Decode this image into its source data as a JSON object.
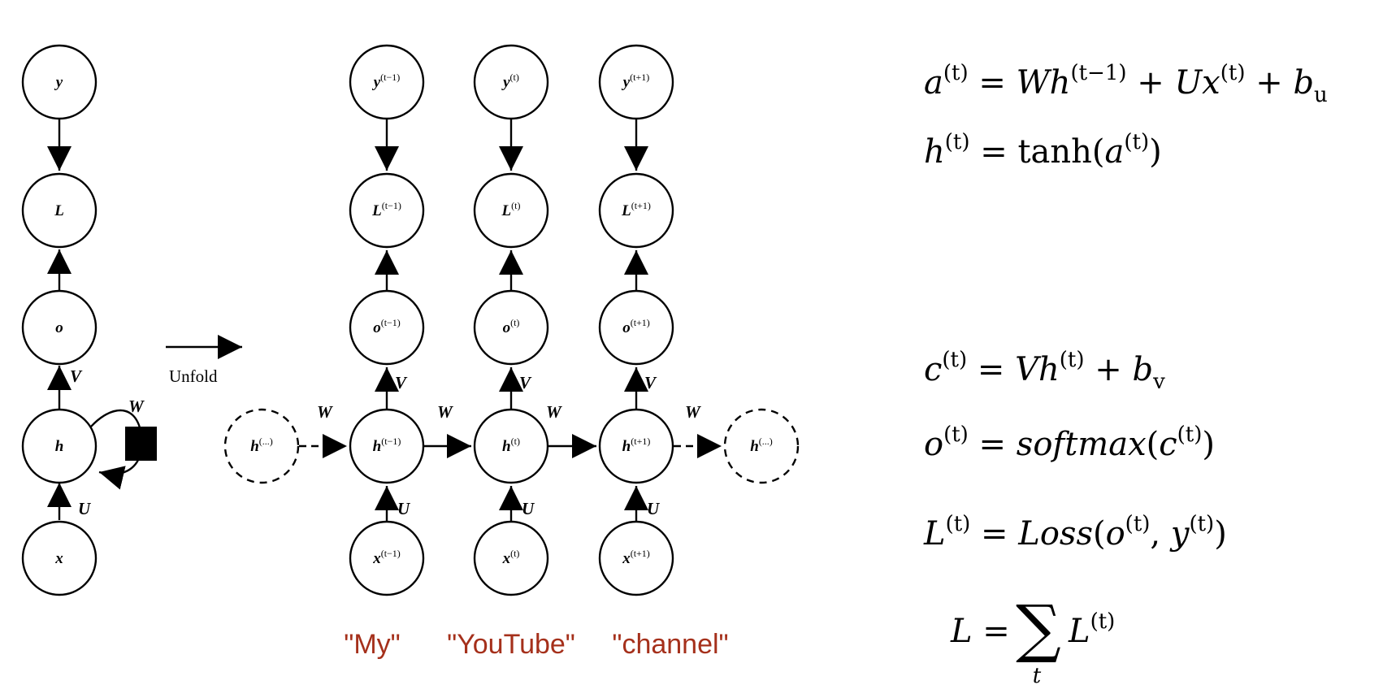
{
  "diagram": {
    "unfold_label": "Unfold",
    "folded": {
      "nodes": {
        "y": "y",
        "L": "L",
        "o": "o",
        "h": "h",
        "x": "x"
      },
      "weights": {
        "V": "V",
        "W": "W",
        "U": "U"
      }
    },
    "unfolded": {
      "h_prev_ellipsis": {
        "base": "h",
        "sup": "(...)"
      },
      "h_next_ellipsis": {
        "base": "h",
        "sup": "(...)"
      },
      "steps": [
        {
          "sup": "(t−1)",
          "word": "\"My\""
        },
        {
          "sup": "(t)",
          "word": "\"YouTube\""
        },
        {
          "sup": "(t+1)",
          "word": "\"channel\""
        }
      ],
      "weights": {
        "V": "V",
        "W": "W",
        "U": "U"
      }
    },
    "colors": {
      "word": "#a5301b",
      "stroke": "#000000"
    }
  },
  "equations": {
    "a_eq": "a(t) = Wh(t−1) + Ux(t) + bu",
    "h_eq": "h(t) = tanh(a(t))",
    "c_eq": "c(t) = Vh(t) + bv",
    "o_eq": "o(t) = softmax(c(t))",
    "L_eq": "L(t) = Loss(o(t), y(t))",
    "sum_eq": "L = Σt L(t)"
  }
}
